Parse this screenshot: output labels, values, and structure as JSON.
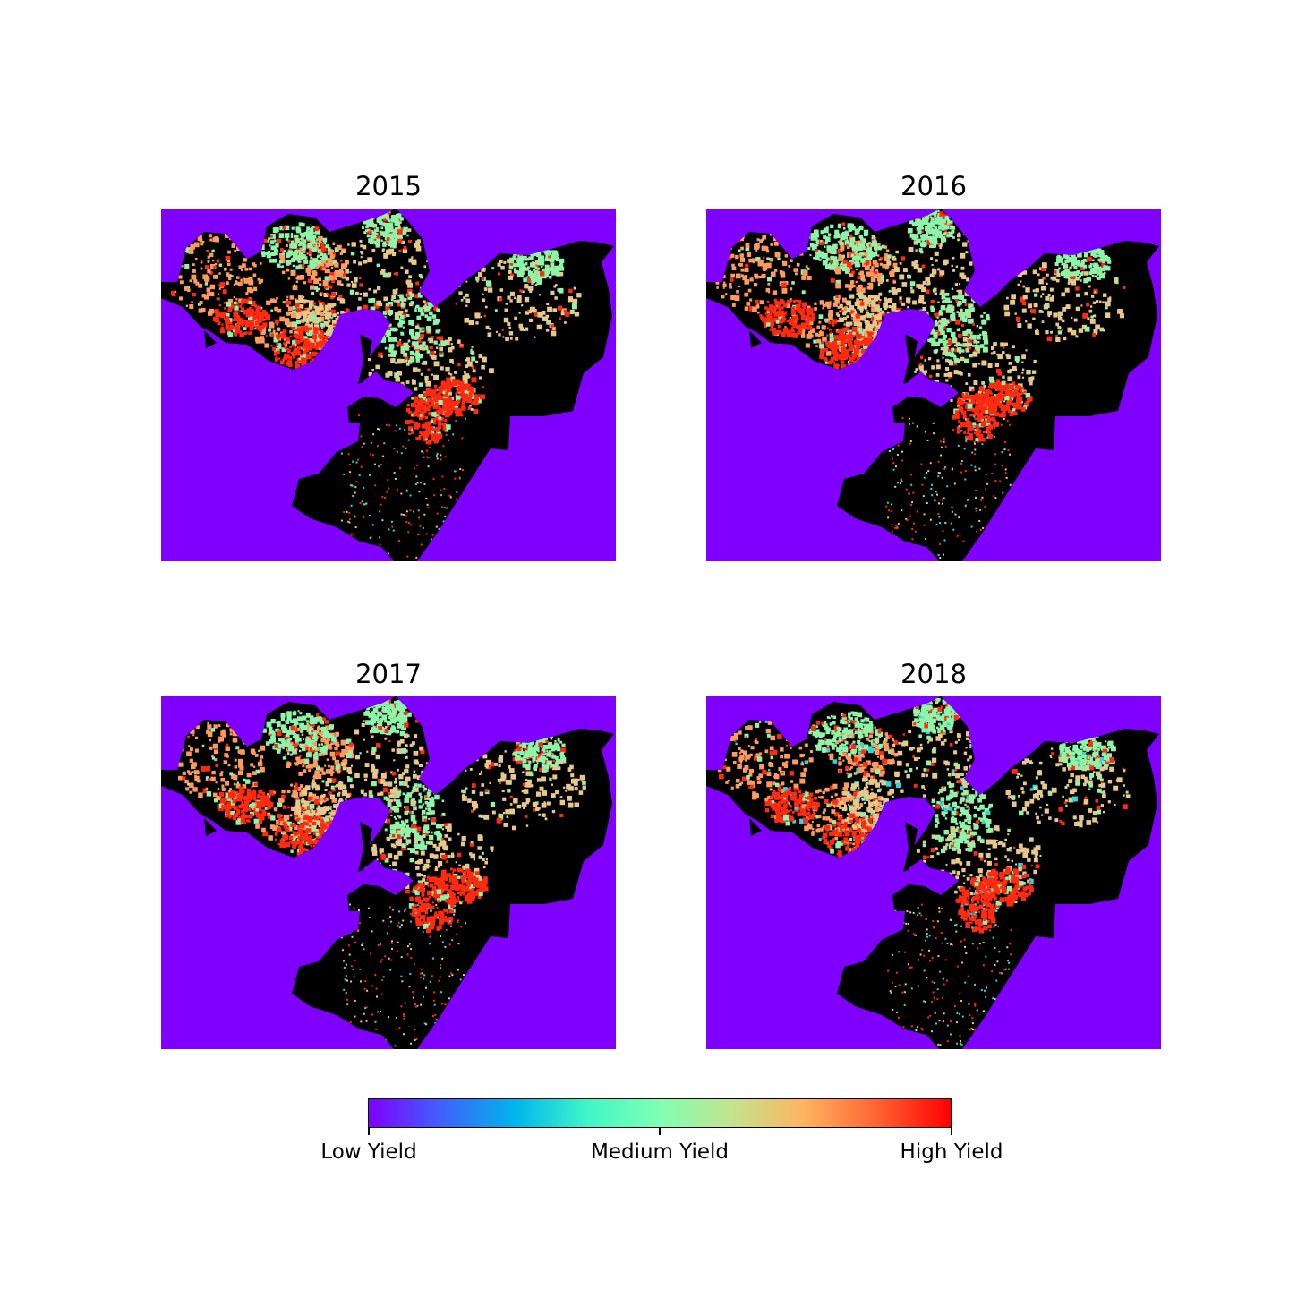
{
  "panels": [
    {
      "title": "2015",
      "variant": 0
    },
    {
      "title": "2016",
      "variant": 1
    },
    {
      "title": "2017",
      "variant": 2
    },
    {
      "title": "2018",
      "variant": 3
    }
  ],
  "map_colors": {
    "background": "#7f00ff",
    "nodata": "#000000",
    "high": "#ff2a10",
    "high_mid": "#ff9a5e",
    "mid": "#e6c98a",
    "medium": "#8cf5a8",
    "low_mid": "#2ad6e0"
  },
  "colorbar": {
    "colormap": "rainbow",
    "stops": [
      "#7f00ff",
      "#3f62fb",
      "#00b5eb",
      "#3ff5c8",
      "#80ffb4",
      "#c4e38e",
      "#ffb360",
      "#ff6232",
      "#ff0000"
    ],
    "ticks": [
      {
        "value": 0,
        "label": "Low Yield"
      },
      {
        "value": 0.5,
        "label": "Medium Yield"
      },
      {
        "value": 1,
        "label": "High Yield"
      }
    ]
  }
}
